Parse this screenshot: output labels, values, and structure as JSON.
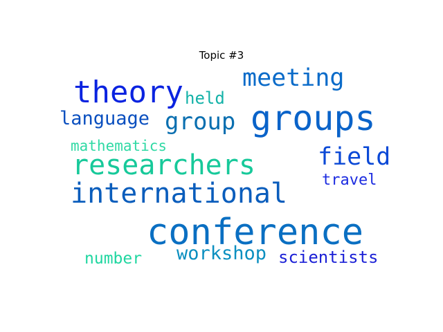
{
  "chart_data": {
    "type": "wordcloud",
    "title": "Topic #3",
    "words": [
      {
        "text": "conference",
        "weight": 1.0,
        "color": "#0a6fc2"
      },
      {
        "text": "groups",
        "weight": 0.82,
        "color": "#0a63c9"
      },
      {
        "text": "theory",
        "weight": 0.8,
        "color": "#0a23e0"
      },
      {
        "text": "researchers",
        "weight": 0.74,
        "color": "#17c99a"
      },
      {
        "text": "international",
        "weight": 0.73,
        "color": "#0a5dbc"
      },
      {
        "text": "meeting",
        "weight": 0.62,
        "color": "#0a6bc9"
      },
      {
        "text": "group",
        "weight": 0.6,
        "color": "#0a6fb0"
      },
      {
        "text": "field",
        "weight": 0.6,
        "color": "#0a48d6"
      },
      {
        "text": "workshop",
        "weight": 0.45,
        "color": "#0b8fc0"
      },
      {
        "text": "language",
        "weight": 0.43,
        "color": "#0a4fbf"
      },
      {
        "text": "held",
        "weight": 0.37,
        "color": "#14b2a8"
      },
      {
        "text": "scientists",
        "weight": 0.37,
        "color": "#1a1fd6"
      },
      {
        "text": "travel",
        "weight": 0.33,
        "color": "#1c2ce0"
      },
      {
        "text": "mathematics",
        "weight": 0.32,
        "color": "#2fd9a4"
      },
      {
        "text": "number",
        "weight": 0.32,
        "color": "#1fd6a0"
      }
    ]
  }
}
